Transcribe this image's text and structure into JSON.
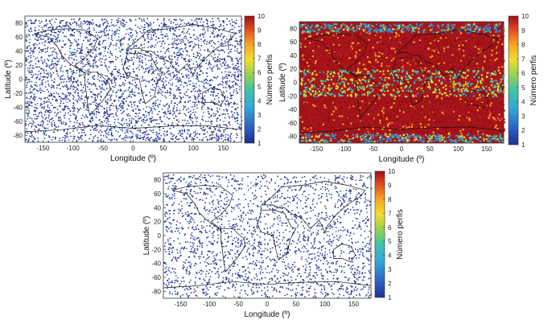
{
  "chart_data": [
    {
      "type": "heatmap",
      "subtype": "global-scatter-map",
      "title": "",
      "xlabel": "Longitude (º)",
      "ylabel": "Latitude (º)",
      "xlim": [
        -180,
        180
      ],
      "ylim": [
        -90,
        90
      ],
      "xticks": [
        "-150",
        "-100",
        "-50",
        "0",
        "50",
        "100",
        "150"
      ],
      "yticks": [
        "80",
        "60",
        "40",
        "20",
        "0",
        "-20",
        "-40",
        "-60",
        "-80"
      ],
      "colorbar": {
        "label": "Número perfis",
        "ticks": [
          "10",
          "9",
          "8",
          "7",
          "6",
          "5",
          "4",
          "3",
          "2",
          "1"
        ],
        "range": [
          1,
          10
        ]
      },
      "density": "sparse",
      "dominant_value": 1
    },
    {
      "type": "heatmap",
      "subtype": "global-scatter-map",
      "title": "",
      "xlabel": "Longitude (º)",
      "ylabel": "Latitude (º)",
      "xlim": [
        -180,
        180
      ],
      "ylim": [
        -90,
        90
      ],
      "xticks": [
        "-150",
        "-100",
        "-50",
        "0",
        "50",
        "100",
        "150"
      ],
      "yticks": [
        "80",
        "60",
        "40",
        "20",
        "0",
        "-20",
        "-40",
        "-60",
        "-80"
      ],
      "colorbar": {
        "label": "Número perfis",
        "ticks": [
          "10",
          "9",
          "8",
          "7",
          "6",
          "5",
          "4",
          "3",
          "2",
          "1"
        ],
        "range": [
          1,
          10
        ]
      },
      "density": "dense",
      "dominant_value": 10
    },
    {
      "type": "heatmap",
      "subtype": "global-scatter-map",
      "title": "",
      "xlabel": "Longitude (º)",
      "ylabel": "Latitude (º)",
      "xlim": [
        -180,
        180
      ],
      "ylim": [
        -90,
        90
      ],
      "xticks": [
        "-150",
        "-100",
        "-50",
        "0",
        "50",
        "100",
        "150"
      ],
      "yticks": [
        "80",
        "60",
        "40",
        "20",
        "0",
        "-20",
        "-40",
        "-60",
        "-80"
      ],
      "colorbar": {
        "label": "Número perfis",
        "ticks": [
          "10",
          "9",
          "8",
          "7",
          "6",
          "5",
          "4",
          "3",
          "2",
          "1"
        ],
        "range": [
          1,
          10
        ]
      },
      "density": "very-sparse",
      "dominant_value": 1
    }
  ],
  "colors": {
    "low": "#1f3fa8",
    "high": "#b0121b",
    "land_outline": "#111111"
  }
}
